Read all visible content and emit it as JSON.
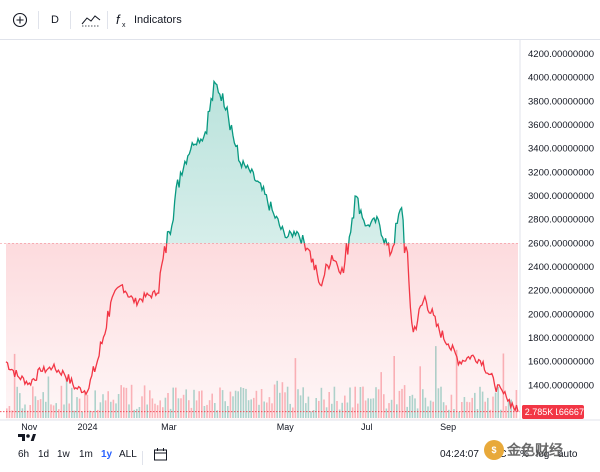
{
  "toolbar": {
    "interval": "D",
    "indicators_label": "Indicators"
  },
  "price_axis": {
    "ticks": [
      "4200.00000000",
      "4000.00000000",
      "3800.00000000",
      "3600.00000000",
      "3400.00000000",
      "3200.00000000",
      "3000.00000000",
      "2800.00000000",
      "2600.00000000",
      "2400.00000000",
      "2200.00000000",
      "2000.00000000",
      "1800.00000000",
      "1600.00000000",
      "1400.00000000"
    ],
    "current_price": "1178.23166667",
    "volume_label": "2.785K"
  },
  "time_axis": {
    "labels": [
      "Nov",
      "2024",
      "Mar",
      "May",
      "Jul",
      "Sep"
    ]
  },
  "range_buttons": [
    "6h",
    "1d",
    "1w",
    "1m",
    "1y",
    "ALL"
  ],
  "active_range": "1y",
  "bottom_right": {
    "clock": "04:24:07",
    "utc": "UTC",
    "percent": "%",
    "log": "log",
    "auto": "auto"
  },
  "watermark": "金色财经",
  "colors": {
    "up": "#089981",
    "down": "#f23645",
    "accent": "#2962ff"
  },
  "chart_data": {
    "type": "line",
    "baseline": 2600,
    "ylim": [
      1150,
      4250
    ],
    "x": [
      "Oct 25",
      "Nov 5",
      "Nov 15",
      "Nov 25",
      "Dec 5",
      "Dec 15",
      "Dec 25",
      "Jan 1",
      "Jan 10",
      "Jan 20",
      "Jan 30",
      "Feb 10",
      "Feb 20",
      "Feb 28",
      "Mar 5",
      "Mar 10",
      "Mar 12",
      "Mar 15",
      "Mar 18",
      "Mar 22",
      "Mar 28",
      "Apr 5",
      "Apr 15",
      "Apr 25",
      "May 5",
      "May 15",
      "May 25",
      "Jun 5",
      "Jun 15",
      "Jun 25",
      "Jul 5",
      "Jul 10",
      "Jul 15",
      "Jul 22",
      "Jul 30",
      "Aug 5",
      "Aug 15",
      "Aug 25",
      "Sep 5",
      "Sep 15",
      "Sep 25",
      "Oct 5",
      "Oct 15",
      "Oct 25",
      "Nov 1"
    ],
    "values": [
      1600,
      1480,
      1420,
      1520,
      1550,
      1500,
      1380,
      1350,
      1650,
      2100,
      2250,
      2100,
      2150,
      2180,
      2700,
      3200,
      3450,
      3500,
      3950,
      3750,
      3300,
      3200,
      3050,
      2850,
      2650,
      2700,
      2550,
      2250,
      2500,
      2350,
      3000,
      2750,
      2800,
      2500,
      2900,
      1850,
      2150,
      1900,
      1750,
      1600,
      1650,
      1600,
      1400,
      1300,
      1178
    ]
  }
}
